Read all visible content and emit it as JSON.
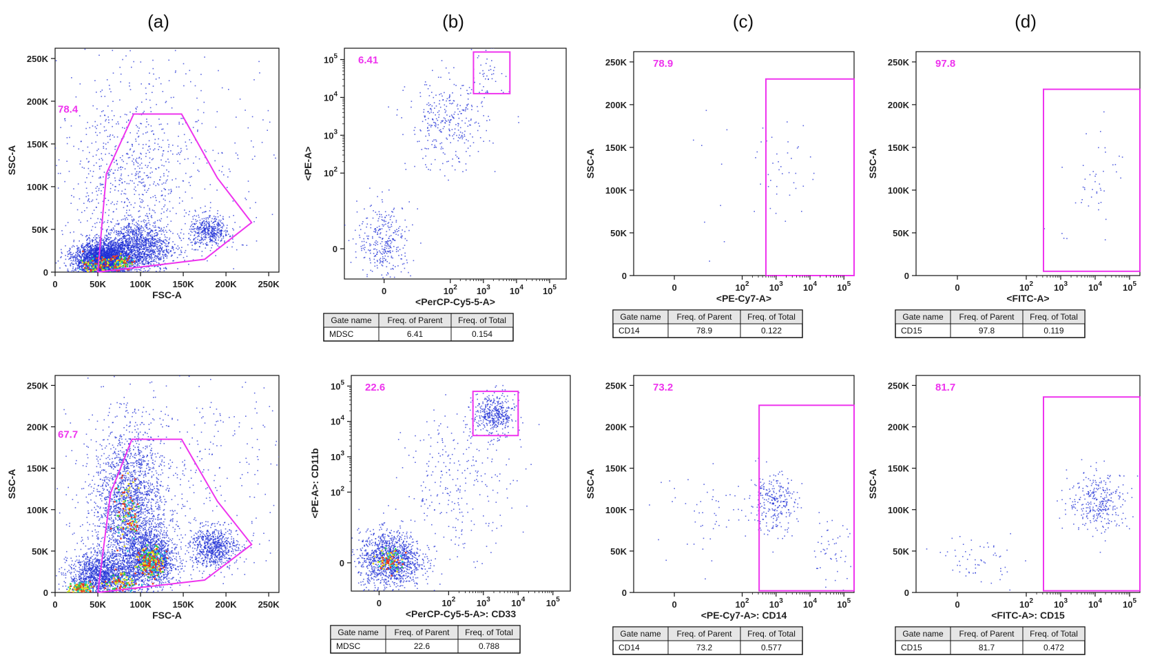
{
  "chart_data": [
    {
      "id": "a1",
      "type": "scatter",
      "panel_letter": "(a)",
      "xlabel": "FSC-A",
      "ylabel": "SSC-A",
      "xscale": "linear",
      "yscale": "linear",
      "xlim": [
        0,
        262000
      ],
      "ylim": [
        0,
        262000
      ],
      "xticks": [
        0,
        50000,
        100000,
        150000,
        200000,
        250000
      ],
      "xtick_labels": [
        "0",
        "50K",
        "100K",
        "150K",
        "200K",
        "250K"
      ],
      "yticks": [
        0,
        50000,
        100000,
        150000,
        200000,
        250000
      ],
      "ytick_labels": [
        "0",
        "50K",
        "100K",
        "150K",
        "200K",
        "250K"
      ],
      "gate": {
        "shape": "polygon",
        "label": "78.4",
        "vertices": [
          [
            50000,
            0
          ],
          [
            60000,
            115000
          ],
          [
            92000,
            185000
          ],
          [
            148000,
            185000
          ],
          [
            190000,
            110000
          ],
          [
            230000,
            58000
          ],
          [
            175000,
            15000
          ]
        ]
      },
      "populations": [
        {
          "cx": 55000,
          "cy": 15000,
          "sx": 16000,
          "sy": 10000,
          "n": 3000
        },
        {
          "cx": 95000,
          "cy": 30000,
          "sx": 20000,
          "sy": 15000,
          "n": 1400
        },
        {
          "cx": 180000,
          "cy": 48000,
          "sx": 12000,
          "sy": 9000,
          "n": 450
        },
        {
          "cx": 85000,
          "cy": 110000,
          "sx": 35000,
          "sy": 50000,
          "n": 500
        },
        {
          "cx": 130000,
          "cy": 130000,
          "sx": 70000,
          "sy": 75000,
          "n": 400
        }
      ],
      "hotspots": [
        {
          "cx": 45000,
          "cy": 8000,
          "sx": 9000,
          "sy": 6000,
          "n": 120
        },
        {
          "cx": 75000,
          "cy": 12000,
          "sx": 8000,
          "sy": 5000,
          "n": 90
        }
      ],
      "table": null
    },
    {
      "id": "b1",
      "type": "scatter",
      "panel_letter": "(b)",
      "xlabel": "<PerCP-Cy5-5-A>",
      "ylabel": "<PE-A>",
      "xscale": "log",
      "yscale": "log",
      "xlim": [
        -1.2,
        5.5
      ],
      "ylim": [
        -0.8,
        5.3
      ],
      "xticks": [
        0,
        2,
        3,
        4,
        5
      ],
      "xtick_labels": [
        "0",
        "10^2",
        "10^3",
        "10^4",
        "10^5"
      ],
      "yticks": [
        0,
        2,
        3,
        4,
        5
      ],
      "ytick_labels": [
        "0",
        "10^2",
        "10^3",
        "10^4",
        "10^5"
      ],
      "gate": {
        "shape": "rect",
        "label": "6.41",
        "x": [
          2.7,
          3.8
        ],
        "y": [
          4.1,
          5.2
        ]
      },
      "populations": [
        {
          "cx": 0.0,
          "cy": 0.2,
          "sx": 0.4,
          "sy": 0.5,
          "n": 320
        },
        {
          "cx": 1.9,
          "cy": 3.3,
          "sx": 0.6,
          "sy": 0.6,
          "n": 320
        },
        {
          "cx": 3.2,
          "cy": 4.6,
          "sx": 0.3,
          "sy": 0.3,
          "n": 40
        }
      ],
      "hotspots": [],
      "table": {
        "headers": [
          "Gate name",
          "Freq. of Parent",
          "Freq. of Total"
        ],
        "row": [
          "MDSC",
          "6.41",
          "0.154"
        ]
      }
    },
    {
      "id": "c1",
      "type": "scatter",
      "panel_letter": "(c)",
      "xlabel": "<PE-Cy7-A>",
      "ylabel": "SSC-A",
      "xscale": "log",
      "yscale": "linear",
      "xlim": [
        -1.2,
        5.3
      ],
      "ylim": [
        0,
        262000
      ],
      "xticks": [
        0,
        2,
        3,
        4,
        5
      ],
      "xtick_labels": [
        "0",
        "10^2",
        "10^3",
        "10^4",
        "10^5"
      ],
      "yticks": [
        0,
        50000,
        100000,
        150000,
        200000,
        250000
      ],
      "ytick_labels": [
        "0",
        "50K",
        "100K",
        "150K",
        "200K",
        "250K"
      ],
      "gate": {
        "shape": "rect",
        "label": "78.9",
        "x": [
          2.7,
          5.3
        ],
        "y": [
          0,
          230000
        ]
      },
      "populations": [
        {
          "cx": 3.2,
          "cy": 130000,
          "sx": 0.4,
          "sy": 30000,
          "n": 38
        },
        {
          "cx": 1.0,
          "cy": 100000,
          "sx": 0.9,
          "sy": 60000,
          "n": 10
        }
      ],
      "hotspots": [],
      "table": {
        "headers": [
          "Gate name",
          "Freq. of Parent",
          "Freq. of Total"
        ],
        "row": [
          "CD14",
          "78.9",
          "0.122"
        ]
      }
    },
    {
      "id": "d1",
      "type": "scatter",
      "panel_letter": "(d)",
      "xlabel": "<FITC-A>",
      "ylabel": "SSC-A",
      "xscale": "log",
      "yscale": "linear",
      "xlim": [
        -1.2,
        5.3
      ],
      "ylim": [
        0,
        262000
      ],
      "xticks": [
        0,
        2,
        3,
        4,
        5
      ],
      "xtick_labels": [
        "0",
        "10^2",
        "10^3",
        "10^4",
        "10^5"
      ],
      "yticks": [
        0,
        50000,
        100000,
        150000,
        200000,
        250000
      ],
      "ytick_labels": [
        "0",
        "50K",
        "100K",
        "150K",
        "200K",
        "250K"
      ],
      "gate": {
        "shape": "rect",
        "label": "97.8",
        "x": [
          2.5,
          5.3
        ],
        "y": [
          5000,
          218000
        ]
      },
      "populations": [
        {
          "cx": 4.1,
          "cy": 120000,
          "sx": 0.35,
          "sy": 28000,
          "n": 40
        },
        {
          "cx": 3.2,
          "cy": 60000,
          "sx": 0.5,
          "sy": 30000,
          "n": 5
        }
      ],
      "hotspots": [],
      "table": {
        "headers": [
          "Gate name",
          "Freq. of Parent",
          "Freq. of Total"
        ],
        "row": [
          "CD15",
          "97.8",
          "0.119"
        ]
      }
    },
    {
      "id": "a2",
      "type": "scatter",
      "panel_letter": "",
      "xlabel": "FSC-A",
      "ylabel": "SSC-A",
      "xscale": "linear",
      "yscale": "linear",
      "xlim": [
        0,
        262000
      ],
      "ylim": [
        0,
        262000
      ],
      "xticks": [
        0,
        50000,
        100000,
        150000,
        200000,
        250000
      ],
      "xtick_labels": [
        "0",
        "50K",
        "100K",
        "150K",
        "200K",
        "250K"
      ],
      "yticks": [
        0,
        50000,
        100000,
        150000,
        200000,
        250000
      ],
      "ytick_labels": [
        "0",
        "50K",
        "100K",
        "150K",
        "200K",
        "250K"
      ],
      "gate": {
        "shape": "polygon",
        "label": "67.7",
        "vertices": [
          [
            50000,
            0
          ],
          [
            65000,
            120000
          ],
          [
            90000,
            185000
          ],
          [
            148000,
            185000
          ],
          [
            190000,
            110000
          ],
          [
            230000,
            58000
          ],
          [
            175000,
            15000
          ]
        ]
      },
      "populations": [
        {
          "cx": 85000,
          "cy": 100000,
          "sx": 20000,
          "sy": 50000,
          "n": 2200
        },
        {
          "cx": 112000,
          "cy": 40000,
          "sx": 14000,
          "sy": 18000,
          "n": 1400
        },
        {
          "cx": 55000,
          "cy": 20000,
          "sx": 20000,
          "sy": 14000,
          "n": 1500
        },
        {
          "cx": 185000,
          "cy": 55000,
          "sx": 14000,
          "sy": 12000,
          "n": 700
        },
        {
          "cx": 140000,
          "cy": 130000,
          "sx": 70000,
          "sy": 70000,
          "n": 500
        }
      ],
      "hotspots": [
        {
          "cx": 112000,
          "cy": 38000,
          "sx": 7000,
          "sy": 9000,
          "n": 220
        },
        {
          "cx": 30000,
          "cy": 5000,
          "sx": 7000,
          "sy": 4000,
          "n": 140
        },
        {
          "cx": 75000,
          "cy": 12000,
          "sx": 9000,
          "sy": 6000,
          "n": 90
        },
        {
          "cx": 85000,
          "cy": 100000,
          "sx": 8000,
          "sy": 20000,
          "n": 100
        }
      ],
      "table": null
    },
    {
      "id": "b2",
      "type": "scatter",
      "panel_letter": "",
      "xlabel": "<PerCP-Cy5-5-A>: CD33",
      "ylabel": "<PE-A>: CD11b",
      "xscale": "log",
      "yscale": "log",
      "xlim": [
        -0.8,
        5.5
      ],
      "ylim": [
        -0.8,
        5.3
      ],
      "xticks": [
        0,
        2,
        3,
        4,
        5
      ],
      "xtick_labels": [
        "0",
        "10^2",
        "10^3",
        "10^4",
        "10^5"
      ],
      "yticks": [
        0,
        2,
        3,
        4,
        5
      ],
      "ytick_labels": [
        "0",
        "10^2",
        "10^3",
        "10^4",
        "10^5"
      ],
      "gate": {
        "shape": "rect",
        "label": "22.6",
        "x": [
          2.7,
          4.0
        ],
        "y": [
          3.6,
          4.85
        ]
      },
      "populations": [
        {
          "cx": 0.3,
          "cy": 0.1,
          "sx": 0.45,
          "sy": 0.4,
          "n": 1300
        },
        {
          "cx": 3.3,
          "cy": 4.2,
          "sx": 0.3,
          "sy": 0.3,
          "n": 420
        },
        {
          "cx": 2.3,
          "cy": 2.3,
          "sx": 0.8,
          "sy": 1.0,
          "n": 280
        }
      ],
      "hotspots": [
        {
          "cx": 0.3,
          "cy": 0.1,
          "sx": 0.18,
          "sy": 0.15,
          "n": 90
        }
      ],
      "table": {
        "headers": [
          "Gate name",
          "Freq. of Parent",
          "Freq. of Total"
        ],
        "row": [
          "MDSC",
          "22.6",
          "0.788"
        ]
      }
    },
    {
      "id": "c2",
      "type": "scatter",
      "panel_letter": "",
      "xlabel": "<PE-Cy7-A>: CD14",
      "ylabel": "SSC-A",
      "xscale": "log",
      "yscale": "linear",
      "xlim": [
        -1.2,
        5.3
      ],
      "ylim": [
        0,
        262000
      ],
      "xticks": [
        0,
        2,
        3,
        4,
        5
      ],
      "xtick_labels": [
        "0",
        "10^2",
        "10^3",
        "10^4",
        "10^5"
      ],
      "yticks": [
        0,
        50000,
        100000,
        150000,
        200000,
        250000
      ],
      "ytick_labels": [
        "0",
        "50K",
        "100K",
        "150K",
        "200K",
        "250K"
      ],
      "gate": {
        "shape": "rect",
        "label": "73.2",
        "x": [
          2.5,
          5.3
        ],
        "y": [
          2000,
          226000
        ]
      },
      "populations": [
        {
          "cx": 2.9,
          "cy": 108000,
          "sx": 0.35,
          "sy": 18000,
          "n": 260
        },
        {
          "cx": 4.6,
          "cy": 50000,
          "sx": 0.35,
          "sy": 18000,
          "n": 50
        },
        {
          "cx": 1.2,
          "cy": 100000,
          "sx": 0.9,
          "sy": 25000,
          "n": 60
        }
      ],
      "hotspots": [],
      "table": {
        "headers": [
          "Gate name",
          "Freq. of Parent",
          "Freq. of Total"
        ],
        "row": [
          "CD14",
          "73.2",
          "0.577"
        ]
      }
    },
    {
      "id": "d2",
      "type": "scatter",
      "panel_letter": "",
      "xlabel": "<FITC-A>: CD15",
      "ylabel": "SSC-A",
      "xscale": "log",
      "yscale": "linear",
      "xlim": [
        -1.2,
        5.3
      ],
      "ylim": [
        0,
        262000
      ],
      "xticks": [
        0,
        2,
        3,
        4,
        5
      ],
      "xtick_labels": [
        "0",
        "10^2",
        "10^3",
        "10^4",
        "10^5"
      ],
      "yticks": [
        0,
        50000,
        100000,
        150000,
        200000,
        250000
      ],
      "ytick_labels": [
        "0",
        "50K",
        "100K",
        "150K",
        "200K",
        "250K"
      ],
      "gate": {
        "shape": "rect",
        "label": "81.7",
        "x": [
          2.5,
          5.3
        ],
        "y": [
          2000,
          236000
        ]
      },
      "populations": [
        {
          "cx": 4.1,
          "cy": 110000,
          "sx": 0.45,
          "sy": 18000,
          "n": 320
        },
        {
          "cx": 0.6,
          "cy": 40000,
          "sx": 0.5,
          "sy": 15000,
          "n": 60
        }
      ],
      "hotspots": [],
      "table": {
        "headers": [
          "Gate name",
          "Freq. of Parent",
          "Freq. of Total"
        ],
        "row": [
          "CD15",
          "81.7",
          "0.472"
        ]
      }
    }
  ]
}
